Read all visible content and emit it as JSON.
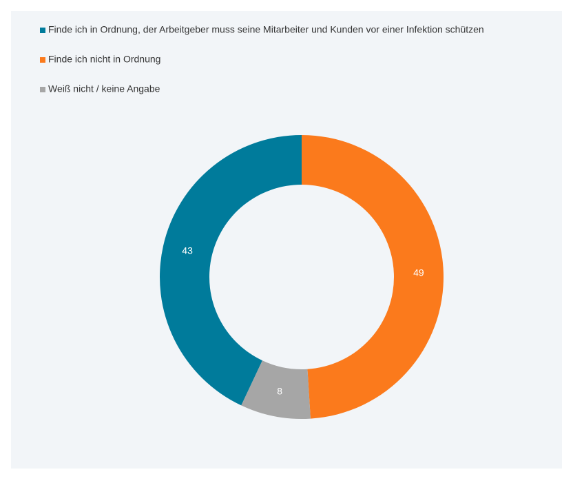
{
  "chart_data": {
    "type": "donut",
    "categories": [
      "Finde ich in Ordnung, der Arbeitgeber muss seine Mitarbeiter und Kunden vor einer Infektion schützen",
      "Finde ich nicht in Ordnung",
      "Weiß nicht / keine Angabe"
    ],
    "values": [
      43,
      49,
      8
    ],
    "colors": [
      "#007b9b",
      "#fb7a1c",
      "#a6a6a6"
    ],
    "legend": "top-left"
  }
}
